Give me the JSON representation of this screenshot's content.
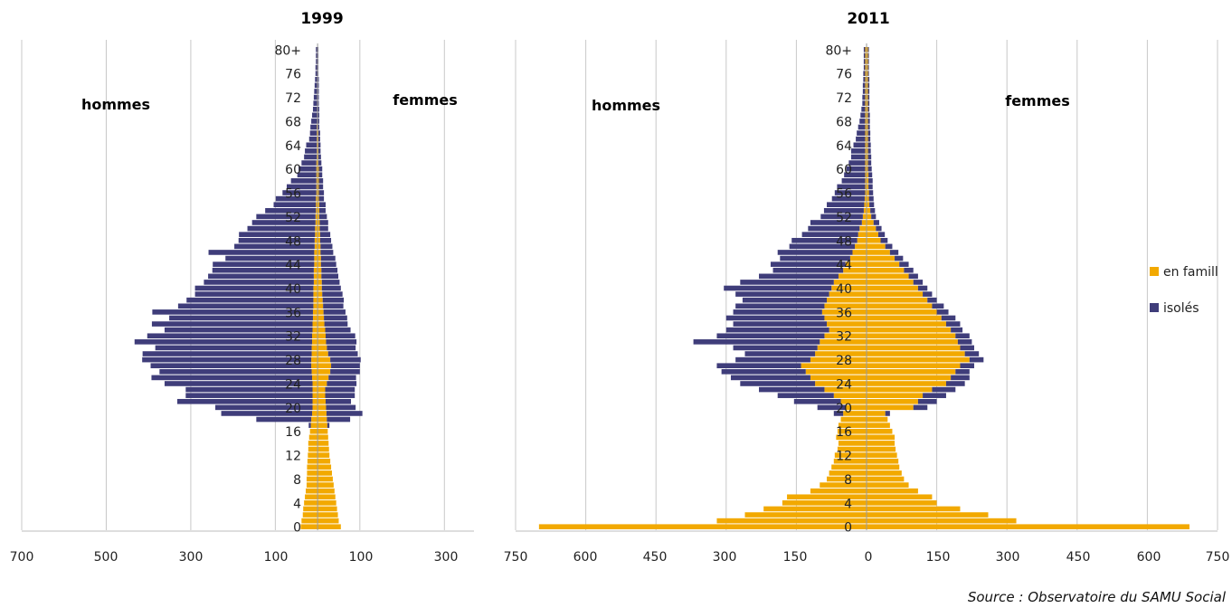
{
  "chart_data": [
    {
      "type": "bar",
      "orientation": "horizontal",
      "stacked": true,
      "diverging": true,
      "title": "1999",
      "left_label": "hommes",
      "right_label": "femmes",
      "x_tick_labels": [
        "700",
        "500",
        "300",
        "100",
        "100",
        "300"
      ],
      "x_ticks": [
        -700,
        -500,
        -300,
        -100,
        100,
        300
      ],
      "xlim": [
        -700,
        370
      ],
      "age_tick_labels": [
        "0",
        "4",
        "8",
        "12",
        "16",
        "20",
        "24",
        "28",
        "32",
        "36",
        "40",
        "44",
        "48",
        "52",
        "56",
        "60",
        "64",
        "68",
        "72",
        "76",
        "80+"
      ],
      "series": [
        {
          "name": "en famill",
          "color": "#F2A900",
          "hommes": [
            40,
            38,
            35,
            34,
            32,
            30,
            28,
            26,
            26,
            25,
            25,
            24,
            23,
            22,
            22,
            20,
            18,
            16,
            15,
            13,
            12,
            12,
            12,
            12,
            12,
            13,
            14,
            15,
            15,
            14,
            14,
            13,
            13,
            12,
            12,
            11,
            11,
            10,
            10,
            10,
            10,
            9,
            9,
            9,
            8,
            8,
            8,
            7,
            7,
            6,
            6,
            5,
            5,
            4,
            4,
            4,
            3,
            3,
            3,
            3,
            3,
            3,
            2,
            2,
            2,
            2,
            2,
            2,
            1,
            1,
            1,
            1,
            1,
            1,
            1,
            1,
            1,
            1,
            1,
            1,
            1
          ],
          "femmes": [
            55,
            50,
            48,
            46,
            44,
            42,
            40,
            38,
            36,
            34,
            32,
            30,
            28,
            27,
            26,
            25,
            24,
            23,
            22,
            21,
            20,
            19,
            18,
            18,
            22,
            26,
            30,
            32,
            30,
            25,
            22,
            20,
            19,
            18,
            16,
            15,
            14,
            13,
            12,
            11,
            10,
            10,
            9,
            9,
            8,
            8,
            7,
            7,
            6,
            6,
            5,
            5,
            4,
            4,
            4,
            3,
            3,
            3,
            3,
            3,
            3,
            2,
            2,
            2,
            2,
            2,
            2,
            1,
            1,
            1,
            1,
            1,
            1,
            1,
            1,
            1,
            1,
            1,
            1,
            1,
            1
          ]
        },
        {
          "name": "isolés",
          "color": "#3F3D7A",
          "hommes": [
            0,
            0,
            0,
            0,
            0,
            0,
            0,
            0,
            0,
            0,
            0,
            0,
            0,
            0,
            0,
            0,
            0,
            5,
            130,
            215,
            230,
            320,
            300,
            300,
            350,
            380,
            360,
            380,
            400,
            400,
            370,
            420,
            390,
            350,
            380,
            340,
            380,
            320,
            300,
            280,
            280,
            260,
            250,
            240,
            240,
            210,
            250,
            190,
            180,
            180,
            160,
            150,
            140,
            120,
            100,
            95,
            80,
            70,
            60,
            45,
            42,
            35,
            30,
            28,
            25,
            18,
            16,
            15,
            14,
            12,
            10,
            9,
            8,
            7,
            6,
            5,
            4,
            4,
            3,
            3,
            3
          ],
          "femmes": [
            0,
            0,
            0,
            0,
            0,
            0,
            0,
            0,
            0,
            0,
            0,
            0,
            0,
            0,
            0,
            0,
            0,
            5,
            55,
            85,
            70,
            60,
            70,
            70,
            70,
            65,
            70,
            68,
            72,
            70,
            68,
            72,
            70,
            60,
            55,
            55,
            52,
            48,
            50,
            48,
            45,
            42,
            40,
            38,
            36,
            34,
            30,
            28,
            26,
            24,
            20,
            20,
            18,
            15,
            15,
            12,
            12,
            10,
            10,
            8,
            8,
            7,
            6,
            5,
            5,
            4,
            4,
            3,
            3,
            3,
            3,
            2,
            2,
            2,
            2,
            2,
            1,
            1,
            1,
            1,
            1
          ]
        }
      ]
    },
    {
      "type": "bar",
      "orientation": "horizontal",
      "stacked": true,
      "diverging": true,
      "title": "2011",
      "left_label": "hommes",
      "right_label": "femmes",
      "x_tick_labels": [
        "750",
        "600",
        "450",
        "300",
        "150",
        "0",
        "150",
        "300",
        "450",
        "600",
        "750"
      ],
      "x_ticks": [
        -750,
        -600,
        -450,
        -300,
        -150,
        0,
        150,
        300,
        450,
        600,
        750
      ],
      "xlim": [
        -750,
        750
      ],
      "age_tick_labels": [
        "0",
        "4",
        "8",
        "12",
        "16",
        "20",
        "24",
        "28",
        "32",
        "36",
        "40",
        "44",
        "48",
        "52",
        "56",
        "60",
        "64",
        "68",
        "72",
        "76",
        "80+"
      ],
      "series": [
        {
          "name": "en famill",
          "color": "#F2A900",
          "hommes": [
            700,
            320,
            260,
            220,
            180,
            170,
            120,
            100,
            85,
            80,
            75,
            70,
            68,
            62,
            60,
            65,
            62,
            60,
            55,
            50,
            45,
            55,
            70,
            90,
            110,
            120,
            130,
            140,
            120,
            110,
            105,
            100,
            90,
            80,
            85,
            90,
            95,
            90,
            85,
            80,
            75,
            70,
            60,
            50,
            45,
            35,
            30,
            25,
            20,
            18,
            15,
            10,
            8,
            6,
            5,
            4,
            3,
            3,
            3,
            3,
            3,
            3,
            3,
            3,
            3,
            3,
            3,
            3,
            3,
            3,
            3,
            3,
            3,
            3,
            3,
            3,
            3,
            3,
            3,
            3,
            3
          ],
          "femmes": [
            690,
            320,
            260,
            200,
            150,
            140,
            110,
            90,
            80,
            75,
            70,
            68,
            65,
            62,
            60,
            60,
            55,
            50,
            45,
            40,
            100,
            110,
            120,
            140,
            170,
            180,
            190,
            200,
            220,
            210,
            200,
            195,
            190,
            180,
            170,
            160,
            150,
            140,
            130,
            120,
            110,
            100,
            90,
            80,
            70,
            60,
            50,
            40,
            30,
            25,
            20,
            15,
            10,
            8,
            6,
            5,
            5,
            4,
            4,
            4,
            3,
            3,
            3,
            3,
            3,
            3,
            3,
            3,
            3,
            3,
            3,
            3,
            3,
            3,
            3,
            3,
            3,
            3,
            3,
            3,
            3
          ]
        },
        {
          "name": "isolés",
          "color": "#3F3D7A",
          "hommes": [
            0,
            0,
            0,
            0,
            0,
            0,
            0,
            0,
            0,
            0,
            0,
            0,
            0,
            0,
            0,
            0,
            0,
            0,
            0,
            20,
            60,
            100,
            120,
            140,
            160,
            170,
            180,
            180,
            160,
            150,
            180,
            270,
            230,
            220,
            200,
            210,
            190,
            190,
            180,
            200,
            230,
            200,
            170,
            150,
            160,
            150,
            160,
            140,
            140,
            120,
            110,
            110,
            90,
            85,
            80,
            70,
            65,
            60,
            50,
            45,
            40,
            35,
            30,
            30,
            25,
            20,
            18,
            15,
            12,
            10,
            8,
            6,
            6,
            5,
            5,
            4,
            4,
            3,
            3,
            3,
            3
          ],
          "femmes": [
            0,
            0,
            0,
            0,
            0,
            0,
            0,
            0,
            0,
            0,
            0,
            0,
            0,
            0,
            0,
            0,
            0,
            0,
            0,
            10,
            30,
            40,
            50,
            50,
            40,
            40,
            30,
            30,
            30,
            30,
            30,
            30,
            30,
            25,
            30,
            30,
            25,
            25,
            20,
            20,
            20,
            20,
            20,
            20,
            20,
            18,
            18,
            15,
            15,
            14,
            12,
            12,
            10,
            10,
            10,
            10,
            9,
            9,
            9,
            8,
            8,
            7,
            7,
            6,
            6,
            5,
            5,
            4,
            4,
            4,
            3,
            3,
            3,
            3,
            3,
            3,
            2,
            2,
            2,
            2,
            2
          ]
        }
      ]
    }
  ],
  "legend": [
    {
      "label": "en famill",
      "color": "#F2A900"
    },
    {
      "label": "isolés",
      "color": "#3F3D7A"
    }
  ],
  "source": "Source : Observatoire du SAMU Social"
}
